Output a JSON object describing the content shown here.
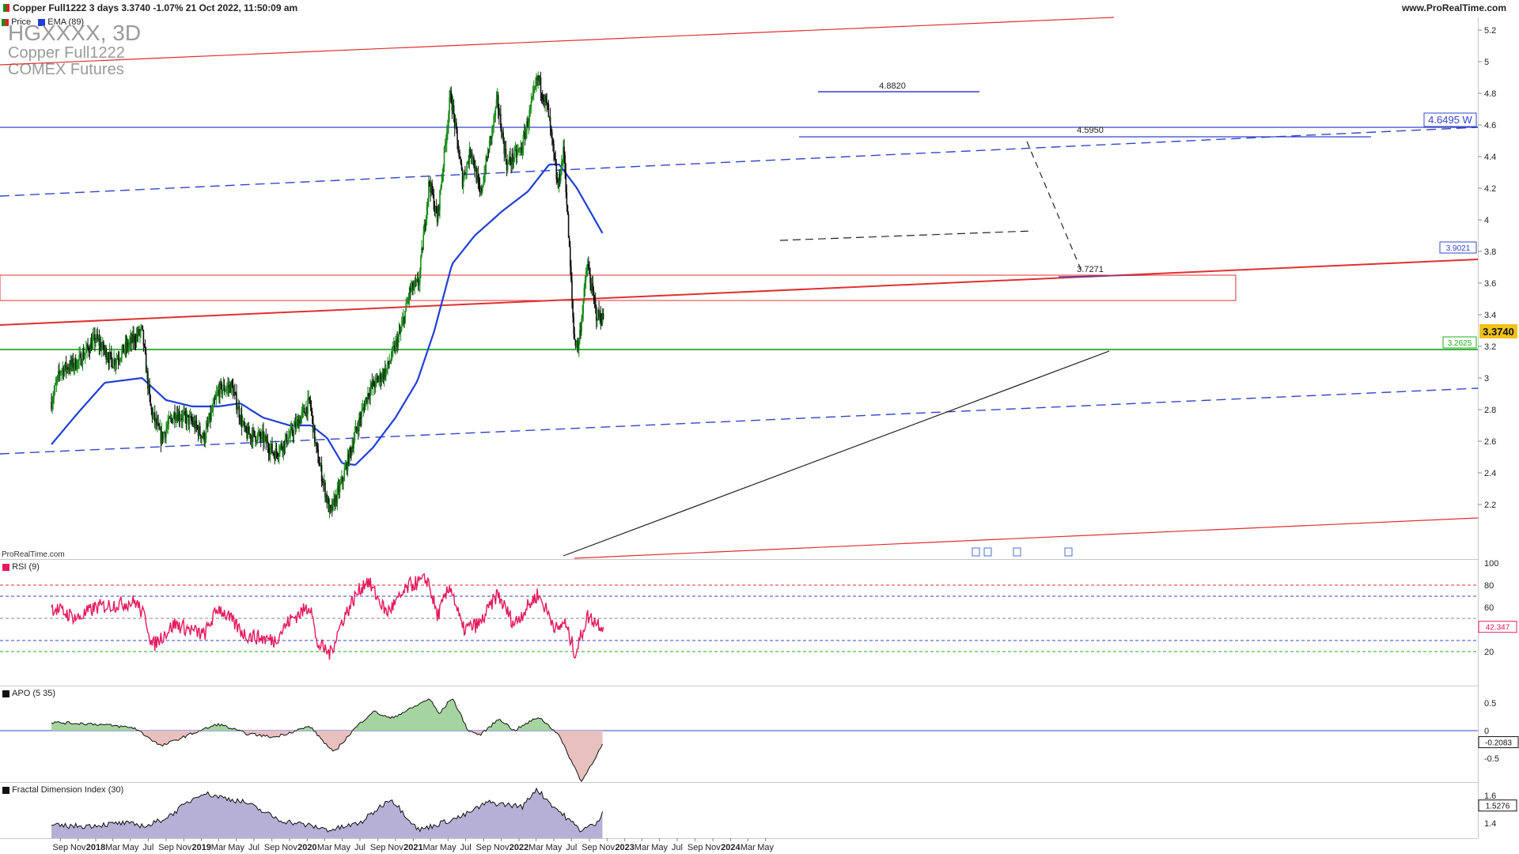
{
  "header": {
    "title_text": "Copper Full1222 3 days 3.3740 -1.07% 21 Oct 2022, 11:50:09 am",
    "website": "www.ProRealTime.com",
    "legend_price": "Price",
    "legend_ema": "EMA (89)"
  },
  "watermark": {
    "symbol": "HGXXXX, 3D",
    "name": "Copper Full1222",
    "exchange": "COMEX Futures"
  },
  "credit": "ProRealTime.com",
  "colors": {
    "price_line": "#555555",
    "up_candle": "#1a8a1a",
    "down_candle": "#111111",
    "ema": "#1f3fd6",
    "red_line": "#e03030",
    "blue_dash": "#3344cc",
    "green_line": "#22aa22",
    "rsi": "#e6195e",
    "apo_pos": "#a6d4a0",
    "apo_neg": "#e8c0bd",
    "fdi_fill": "#b6b0d6",
    "current_price_bg": "#f2c21a"
  },
  "annotations": {
    "top_level_label": "4.8820",
    "mid_level_label": "4.5950",
    "pivot_label": "3.7271",
    "blue_tag": "4.6495 W",
    "red_tag": "3.9021",
    "price_tag": "3.3740",
    "green_tag": "3.2625"
  },
  "chart_data": [
    {
      "type": "candlestick",
      "title": "Copper Full1222 3 days",
      "last": 3.374,
      "change_pct": -1.07,
      "ylim": [
        2.0,
        5.3
      ],
      "y_ticks": [
        "5.2",
        "5",
        "4.8",
        "4.6",
        "4.4",
        "4.2",
        "4",
        "3.8",
        "3.6",
        "3.4",
        "3.2",
        "3",
        "2.8",
        "2.6",
        "2.4",
        "2.2"
      ],
      "x_ticks": [
        "Sep",
        "Nov",
        "2018",
        "Mar",
        "May",
        "Jul",
        "Sep",
        "Nov",
        "2019",
        "Mar",
        "May",
        "Jul",
        "Sep",
        "Nov",
        "2020",
        "Mar",
        "May",
        "Jul",
        "Sep",
        "Nov",
        "2021",
        "Mar",
        "May",
        "Jul",
        "Sep",
        "Nov",
        "2022",
        "Mar",
        "May",
        "Jul",
        "Sep",
        "Nov",
        "2023",
        "Mar",
        "May",
        "Jul",
        "Sep",
        "Nov",
        "2024",
        "Mar",
        "May"
      ],
      "series": [
        {
          "name": "Price",
          "anchors": [
            {
              "date": "2017-08-01",
              "value": 2.85
            },
            {
              "date": "2017-09-01",
              "value": 3.05
            },
            {
              "date": "2017-11-01",
              "value": 3.1
            },
            {
              "date": "2018-01-01",
              "value": 3.25
            },
            {
              "date": "2018-03-01",
              "value": 3.1
            },
            {
              "date": "2018-05-15",
              "value": 3.25
            },
            {
              "date": "2018-06-10",
              "value": 3.3
            },
            {
              "date": "2018-07-10",
              "value": 2.8
            },
            {
              "date": "2018-08-15",
              "value": 2.62
            },
            {
              "date": "2018-10-01",
              "value": 2.78
            },
            {
              "date": "2018-12-01",
              "value": 2.72
            },
            {
              "date": "2019-01-10",
              "value": 2.62
            },
            {
              "date": "2019-03-01",
              "value": 2.92
            },
            {
              "date": "2019-04-15",
              "value": 2.95
            },
            {
              "date": "2019-06-01",
              "value": 2.65
            },
            {
              "date": "2019-08-01",
              "value": 2.62
            },
            {
              "date": "2019-09-10",
              "value": 2.52
            },
            {
              "date": "2019-11-01",
              "value": 2.63
            },
            {
              "date": "2020-01-10",
              "value": 2.85
            },
            {
              "date": "2020-02-01",
              "value": 2.55
            },
            {
              "date": "2020-03-20",
              "value": 2.14
            },
            {
              "date": "2020-05-01",
              "value": 2.35
            },
            {
              "date": "2020-06-15",
              "value": 2.65
            },
            {
              "date": "2020-08-01",
              "value": 2.92
            },
            {
              "date": "2020-10-01",
              "value": 3.05
            },
            {
              "date": "2020-11-20",
              "value": 3.3
            },
            {
              "date": "2020-12-20",
              "value": 3.55
            },
            {
              "date": "2021-01-20",
              "value": 3.6
            },
            {
              "date": "2021-02-25",
              "value": 4.25
            },
            {
              "date": "2021-03-25",
              "value": 4.0
            },
            {
              "date": "2021-05-10",
              "value": 4.8
            },
            {
              "date": "2021-06-20",
              "value": 4.25
            },
            {
              "date": "2021-07-20",
              "value": 4.45
            },
            {
              "date": "2021-08-20",
              "value": 4.15
            },
            {
              "date": "2021-10-18",
              "value": 4.75
            },
            {
              "date": "2021-11-20",
              "value": 4.35
            },
            {
              "date": "2022-01-10",
              "value": 4.45
            },
            {
              "date": "2022-03-07",
              "value": 4.9
            },
            {
              "date": "2022-04-10",
              "value": 4.7
            },
            {
              "date": "2022-05-15",
              "value": 4.2
            },
            {
              "date": "2022-06-05",
              "value": 4.45
            },
            {
              "date": "2022-07-10",
              "value": 3.25
            },
            {
              "date": "2022-07-25",
              "value": 3.2
            },
            {
              "date": "2022-08-25",
              "value": 3.72
            },
            {
              "date": "2022-09-25",
              "value": 3.4
            },
            {
              "date": "2022-10-21",
              "value": 3.374
            }
          ]
        },
        {
          "name": "EMA (89)",
          "anchors": [
            {
              "date": "2017-08-01",
              "value": 2.58
            },
            {
              "date": "2017-11-01",
              "value": 2.78
            },
            {
              "date": "2018-02-01",
              "value": 2.97
            },
            {
              "date": "2018-06-10",
              "value": 3.0
            },
            {
              "date": "2018-09-01",
              "value": 2.86
            },
            {
              "date": "2018-12-01",
              "value": 2.82
            },
            {
              "date": "2019-03-01",
              "value": 2.82
            },
            {
              "date": "2019-05-15",
              "value": 2.84
            },
            {
              "date": "2019-08-01",
              "value": 2.75
            },
            {
              "date": "2019-11-01",
              "value": 2.7
            },
            {
              "date": "2020-01-15",
              "value": 2.7
            },
            {
              "date": "2020-03-10",
              "value": 2.62
            },
            {
              "date": "2020-05-01",
              "value": 2.46
            },
            {
              "date": "2020-06-15",
              "value": 2.45
            },
            {
              "date": "2020-08-15",
              "value": 2.56
            },
            {
              "date": "2020-11-01",
              "value": 2.75
            },
            {
              "date": "2021-01-15",
              "value": 2.98
            },
            {
              "date": "2021-03-15",
              "value": 3.3
            },
            {
              "date": "2021-05-15",
              "value": 3.72
            },
            {
              "date": "2021-08-01",
              "value": 3.9
            },
            {
              "date": "2021-11-01",
              "value": 4.05
            },
            {
              "date": "2022-02-01",
              "value": 4.18
            },
            {
              "date": "2022-04-15",
              "value": 4.35
            },
            {
              "date": "2022-05-20",
              "value": 4.35
            },
            {
              "date": "2022-07-20",
              "value": 4.2
            },
            {
              "date": "2022-10-21",
              "value": 3.9
            }
          ]
        }
      ]
    },
    {
      "type": "line",
      "title": "RSI (9)",
      "last": 42.347,
      "y_ticks": [
        "100",
        "80",
        "60",
        "40",
        "20"
      ],
      "levels": [
        80,
        70,
        50,
        30,
        20
      ],
      "anchors": [
        {
          "date": "2017-08-01",
          "value": 60
        },
        {
          "date": "2017-11-01",
          "value": 50
        },
        {
          "date": "2018-01-01",
          "value": 60
        },
        {
          "date": "2018-05-20",
          "value": 65
        },
        {
          "date": "2018-06-25",
          "value": 48
        },
        {
          "date": "2018-07-15",
          "value": 25
        },
        {
          "date": "2018-10-01",
          "value": 45
        },
        {
          "date": "2019-01-10",
          "value": 35
        },
        {
          "date": "2019-03-01",
          "value": 60
        },
        {
          "date": "2019-06-01",
          "value": 35
        },
        {
          "date": "2019-09-10",
          "value": 30
        },
        {
          "date": "2019-11-01",
          "value": 48
        },
        {
          "date": "2020-01-15",
          "value": 62
        },
        {
          "date": "2020-02-01",
          "value": 28
        },
        {
          "date": "2020-03-20",
          "value": 18
        },
        {
          "date": "2020-05-01",
          "value": 48
        },
        {
          "date": "2020-06-15",
          "value": 70
        },
        {
          "date": "2020-07-25",
          "value": 85
        },
        {
          "date": "2020-10-01",
          "value": 55
        },
        {
          "date": "2020-11-15",
          "value": 68
        },
        {
          "date": "2020-12-20",
          "value": 80
        },
        {
          "date": "2021-02-20",
          "value": 85
        },
        {
          "date": "2021-03-25",
          "value": 52
        },
        {
          "date": "2021-05-10",
          "value": 80
        },
        {
          "date": "2021-06-20",
          "value": 40
        },
        {
          "date": "2021-08-20",
          "value": 45
        },
        {
          "date": "2021-10-18",
          "value": 72
        },
        {
          "date": "2021-12-15",
          "value": 45
        },
        {
          "date": "2022-03-07",
          "value": 72
        },
        {
          "date": "2022-05-15",
          "value": 38
        },
        {
          "date": "2022-06-05",
          "value": 48
        },
        {
          "date": "2022-07-15",
          "value": 18
        },
        {
          "date": "2022-08-25",
          "value": 52
        },
        {
          "date": "2022-10-21",
          "value": 42.35
        }
      ]
    },
    {
      "type": "area",
      "title": "APO (5 35)",
      "last": -0.2083,
      "y_ticks": [
        "0.5",
        "0",
        "-0.5"
      ],
      "anchors": [
        {
          "date": "2017-08-01",
          "value": 0.15
        },
        {
          "date": "2018-01-01",
          "value": 0.12
        },
        {
          "date": "2018-05-15",
          "value": 0.05
        },
        {
          "date": "2018-08-15",
          "value": -0.28
        },
        {
          "date": "2018-12-01",
          "value": -0.05
        },
        {
          "date": "2019-03-01",
          "value": 0.12
        },
        {
          "date": "2019-06-01",
          "value": -0.05
        },
        {
          "date": "2019-09-10",
          "value": -0.12
        },
        {
          "date": "2020-01-10",
          "value": 0.08
        },
        {
          "date": "2020-04-01",
          "value": -0.4
        },
        {
          "date": "2020-06-15",
          "value": 0.05
        },
        {
          "date": "2020-08-15",
          "value": 0.35
        },
        {
          "date": "2020-10-15",
          "value": 0.22
        },
        {
          "date": "2021-01-01",
          "value": 0.42
        },
        {
          "date": "2021-02-25",
          "value": 0.58
        },
        {
          "date": "2021-04-01",
          "value": 0.3
        },
        {
          "date": "2021-05-15",
          "value": 0.6
        },
        {
          "date": "2021-07-10",
          "value": 0.0
        },
        {
          "date": "2021-08-20",
          "value": -0.08
        },
        {
          "date": "2021-10-25",
          "value": 0.22
        },
        {
          "date": "2021-12-15",
          "value": 0.0
        },
        {
          "date": "2022-03-10",
          "value": 0.25
        },
        {
          "date": "2022-05-15",
          "value": -0.05
        },
        {
          "date": "2022-08-05",
          "value": -0.92
        },
        {
          "date": "2022-10-21",
          "value": -0.21
        }
      ]
    },
    {
      "type": "area",
      "title": "Fractal Dimension Index (30)",
      "last": 1.5276,
      "y_ticks": [
        "1.6",
        "1.4"
      ],
      "anchors": [
        {
          "date": "2017-08-01",
          "value": 1.38
        },
        {
          "date": "2017-12-01",
          "value": 1.38
        },
        {
          "date": "2018-04-01",
          "value": 1.4
        },
        {
          "date": "2018-07-01",
          "value": 1.38
        },
        {
          "date": "2018-09-10",
          "value": 1.45
        },
        {
          "date": "2019-01-01",
          "value": 1.62
        },
        {
          "date": "2019-06-01",
          "value": 1.55
        },
        {
          "date": "2019-10-01",
          "value": 1.42
        },
        {
          "date": "2020-01-15",
          "value": 1.38
        },
        {
          "date": "2020-03-20",
          "value": 1.35
        },
        {
          "date": "2020-07-01",
          "value": 1.4
        },
        {
          "date": "2020-10-15",
          "value": 1.58
        },
        {
          "date": "2021-01-20",
          "value": 1.35
        },
        {
          "date": "2021-06-20",
          "value": 1.45
        },
        {
          "date": "2021-09-15",
          "value": 1.55
        },
        {
          "date": "2022-01-15",
          "value": 1.52
        },
        {
          "date": "2022-03-01",
          "value": 1.65
        },
        {
          "date": "2022-05-01",
          "value": 1.52
        },
        {
          "date": "2022-08-01",
          "value": 1.35
        },
        {
          "date": "2022-10-01",
          "value": 1.4
        },
        {
          "date": "2022-10-21",
          "value": 1.53
        }
      ]
    }
  ]
}
